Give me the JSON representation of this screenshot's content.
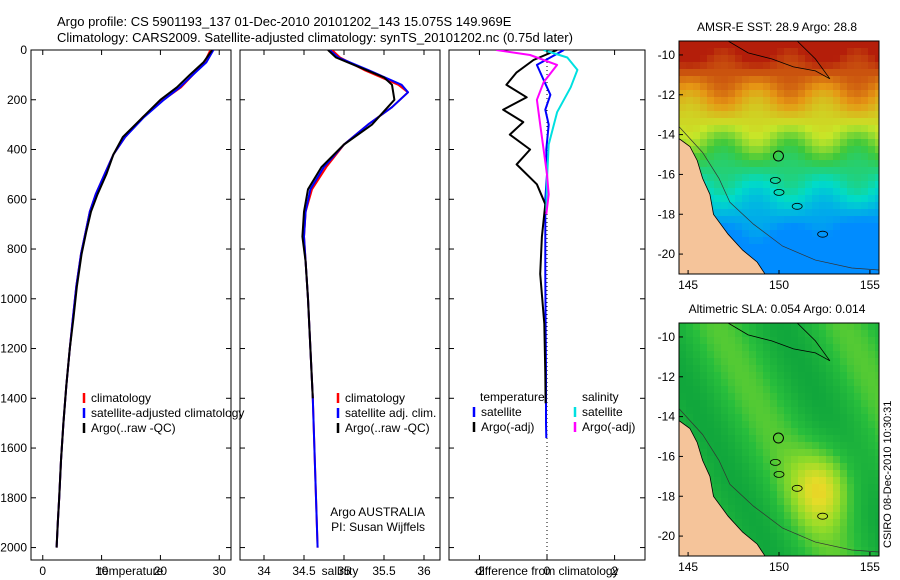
{
  "header": {
    "line1": "Argo profile: CS 5901193_137 01-Dec-2010 20101202_143 15.075S 149.969E",
    "line2": "Climatology: CARS2009. Satellite-adjusted climatology: synTS_20101202.nc (0.75d later)"
  },
  "side_note": "CSIRO 08-Dec-2010 10:30:31",
  "colors": {
    "climatology": "#ff0000",
    "satellite": "#0000ff",
    "argo": "#000000",
    "sat_salinity": "#00e0e0",
    "argo_salinity": "#ff00ff",
    "land": "#f5c49a"
  },
  "chart_data": [
    {
      "type": "line",
      "xlabel": "temperature",
      "xlim": [
        -2,
        32
      ],
      "xticks": [
        0,
        10,
        20,
        30
      ],
      "ylim": [
        0,
        2050
      ],
      "yticks": [
        0,
        200,
        400,
        600,
        800,
        1000,
        1200,
        1400,
        1600,
        1800,
        2000
      ],
      "legend": [
        "climatology",
        "satellite-adjusted climatology",
        "Argo(..raw -QC)"
      ],
      "series": [
        {
          "name": "climatology",
          "color": "#ff0000",
          "x": [
            28.5,
            27.5,
            25.5,
            23.5,
            20.5,
            17,
            14,
            12,
            10.5,
            9,
            8,
            7.3,
            6.5,
            5.7,
            5.1,
            4.6,
            4.0,
            3.5,
            3.1,
            2.8,
            2.55,
            2.35
          ],
          "y": [
            0,
            50,
            100,
            150,
            200,
            270,
            350,
            420,
            500,
            580,
            650,
            730,
            820,
            950,
            1080,
            1200,
            1350,
            1500,
            1650,
            1800,
            1900,
            2000
          ]
        },
        {
          "name": "satellite-adjusted climatology",
          "color": "#0000ff",
          "x": [
            29,
            27.8,
            25.5,
            23.3,
            20.6,
            17.2,
            14,
            12,
            10.5,
            9,
            8,
            7.3,
            6.5,
            5.7,
            5.1,
            4.6,
            4.0,
            3.5,
            3.1,
            2.8,
            2.55,
            2.35
          ],
          "y": [
            0,
            50,
            100,
            150,
            200,
            270,
            350,
            420,
            500,
            580,
            650,
            730,
            820,
            950,
            1080,
            1200,
            1350,
            1500,
            1650,
            1800,
            1900,
            2000
          ]
        },
        {
          "name": "Argo(..raw -QC)",
          "color": "#000000",
          "x": [
            28.8,
            27.3,
            25,
            22.8,
            20,
            17,
            13.6,
            12,
            10.8,
            9.3,
            8.2,
            7.4,
            6.6,
            5.8,
            5.2,
            4.6,
            4.0,
            3.5,
            3.1,
            2.8,
            2.55,
            2.35
          ],
          "y": [
            0,
            50,
            100,
            150,
            200,
            270,
            350,
            420,
            500,
            580,
            650,
            730,
            820,
            950,
            1080,
            1200,
            1350,
            1500,
            1650,
            1800,
            1900,
            2000
          ]
        }
      ]
    },
    {
      "type": "line",
      "xlabel": "salinity",
      "xlim": [
        33.7,
        36.2
      ],
      "xticks": [
        34,
        34.5,
        35,
        35.5,
        36
      ],
      "ylim": [
        0,
        2050
      ],
      "legend": [
        "climatology",
        "satellite adj. clim.",
        "Argo(..raw -QC)"
      ],
      "annotation": [
        "Argo AUSTRALIA",
        "PI: Susan Wijffels"
      ],
      "series": [
        {
          "name": "climatology",
          "color": "#ff0000",
          "x": [
            34.85,
            34.95,
            35.25,
            35.68,
            35.8,
            35.6,
            35.3,
            35.0,
            34.78,
            34.6,
            34.52,
            34.5,
            34.52,
            34.55,
            34.58,
            34.61,
            34.63,
            34.65,
            34.67
          ],
          "y": [
            0,
            30,
            80,
            140,
            170,
            230,
            300,
            380,
            470,
            560,
            650,
            750,
            850,
            1000,
            1200,
            1400,
            1600,
            1800,
            2000
          ]
        },
        {
          "name": "satellite adj. clim.",
          "color": "#0000ff",
          "x": [
            34.82,
            34.93,
            35.3,
            35.72,
            35.8,
            35.6,
            35.3,
            35.0,
            34.75,
            34.58,
            34.52,
            34.5,
            34.52,
            34.55,
            34.58,
            34.61,
            34.63,
            34.65,
            34.67
          ],
          "y": [
            0,
            30,
            80,
            140,
            170,
            230,
            300,
            380,
            470,
            560,
            650,
            750,
            850,
            1000,
            1200,
            1400,
            1600,
            1800,
            2000
          ]
        },
        {
          "name": "Argo(..raw -QC)",
          "color": "#000000",
          "x": [
            34.8,
            34.9,
            35.2,
            35.5,
            35.6,
            35.63,
            35.35,
            35.0,
            34.72,
            34.55,
            34.5,
            34.48,
            34.52,
            34.55,
            34.58,
            34.61
          ],
          "y": [
            0,
            30,
            70,
            110,
            140,
            200,
            300,
            380,
            470,
            560,
            650,
            750,
            850,
            1000,
            1200,
            1400
          ]
        }
      ]
    },
    {
      "type": "line",
      "xlabel": "difference from climatology",
      "xlim": [
        -2.9,
        2.9
      ],
      "xticks": [
        -2,
        0,
        2
      ],
      "ylim": [
        0,
        2050
      ],
      "legend_headers": [
        "temperature",
        "salinity"
      ],
      "legend": [
        "satellite",
        "Argo(-adj)",
        "satellite",
        "Argo(-adj)"
      ],
      "series": [
        {
          "name": "satellite",
          "group": "temperature",
          "color": "#0000ff",
          "x": [
            0.5,
            -0.3,
            -0.1,
            0.1,
            -0.05,
            0.05,
            -0.02,
            0.0,
            -0.05,
            -0.05,
            -0.05,
            -0.04,
            -0.03,
            -0.03,
            -0.02
          ],
          "y": [
            0,
            60,
            120,
            180,
            240,
            300,
            400,
            500,
            600,
            700,
            900,
            1100,
            1300,
            1500,
            1560
          ]
        },
        {
          "name": "Argo(-adj)",
          "group": "temperature",
          "color": "#000000",
          "x": [
            0.3,
            -0.4,
            -0.9,
            -1.2,
            -0.6,
            -1.3,
            -0.7,
            -1.1,
            -0.5,
            -0.9,
            -0.3,
            -0.05,
            -0.15,
            -0.2,
            -0.08,
            -0.05,
            -0.04
          ],
          "y": [
            0,
            40,
            90,
            140,
            190,
            240,
            290,
            340,
            400,
            460,
            540,
            620,
            750,
            900,
            1100,
            1300,
            1420
          ]
        },
        {
          "name": "satellite",
          "group": "salinity",
          "color": "#00e0e0",
          "x": [
            -0.1,
            0.6,
            0.9,
            0.7,
            0.3,
            0.05,
            0.0,
            -0.02
          ],
          "y": [
            0,
            30,
            80,
            150,
            250,
            380,
            520,
            650
          ]
        },
        {
          "name": "Argo(-adj)",
          "group": "salinity",
          "color": "#ff00ff",
          "x": [
            -1.5,
            -0.5,
            0.3,
            -0.1,
            -0.3,
            -0.2,
            -0.1,
            0.0,
            0.05,
            -0.02
          ],
          "y": [
            0,
            20,
            60,
            130,
            200,
            300,
            400,
            500,
            580,
            660
          ]
        }
      ]
    },
    {
      "type": "heatmap",
      "title": "AMSR-E SST: 28.9 Argo: 28.8",
      "xlim": [
        144.5,
        155.5
      ],
      "xticks": [
        145,
        150,
        155
      ],
      "ylim": [
        -21,
        -9.3
      ],
      "yticks": [
        -10,
        -12,
        -14,
        -16,
        -18,
        -20
      ]
    },
    {
      "type": "heatmap",
      "title": "Altimetric SLA: 0.054 Argo: 0.014",
      "xlim": [
        144.5,
        155.5
      ],
      "xticks": [
        145,
        150,
        155
      ],
      "ylim": [
        -21,
        -9.3
      ],
      "yticks": [
        -10,
        -12,
        -14,
        -16,
        -18,
        -20
      ]
    }
  ]
}
